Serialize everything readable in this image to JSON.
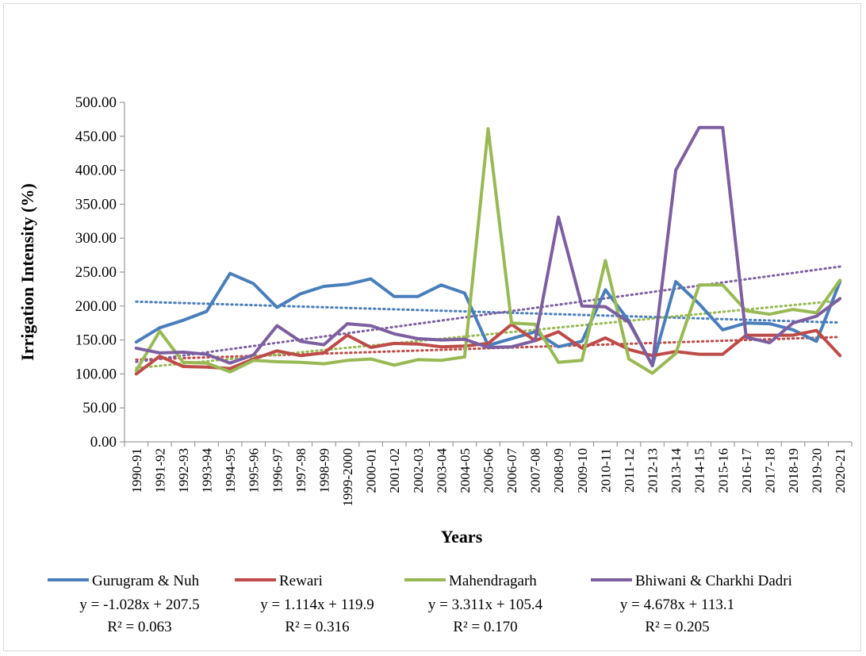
{
  "chart_data": {
    "type": "line",
    "title": "",
    "xlabel": "Years",
    "ylabel": "Irrigation Intensity (%)",
    "ylim": [
      0,
      500
    ],
    "yticks": [
      "0.00",
      "50.00",
      "100.00",
      "150.00",
      "200.00",
      "250.00",
      "300.00",
      "350.00",
      "400.00",
      "450.00",
      "500.00"
    ],
    "grid": false,
    "legend": "bottom",
    "categories": [
      "1990-91",
      "1991-92",
      "1992-93",
      "1993-94",
      "1994-95",
      "1995-96",
      "1996-97",
      "1997-98",
      "1998-99",
      "1999-2000",
      "2000-01",
      "2001-02",
      "2002-03",
      "2003-04",
      "2004-05",
      "2005-06",
      "2006-07",
      "2007-08",
      "2008-09",
      "2009-10",
      "2010-11",
      "2011-12",
      "2012-13",
      "2013-14",
      "2014-15",
      "2015-16",
      "2016-17",
      "2017-18",
      "2018-19",
      "2019-20",
      "2020-21"
    ],
    "series": [
      {
        "name": "Gurugram & Nuh",
        "color": "#4a7ebb",
        "values": [
          147,
          168,
          179,
          192,
          248,
          233,
          198,
          218,
          229,
          232,
          240,
          214,
          214,
          231,
          219,
          142,
          152,
          162,
          140,
          148,
          224,
          178,
          112,
          236,
          203,
          165,
          175,
          174,
          165,
          148,
          236
        ],
        "trendline": {
          "slope": -1.028,
          "intercept": 207.5,
          "equation": "y = -1.028x + 207.5",
          "r2": "R² = 0.063"
        }
      },
      {
        "name": "Rewari",
        "color": "#be4b48",
        "values": [
          100,
          126,
          111,
          110,
          108,
          122,
          134,
          127,
          131,
          157,
          139,
          145,
          144,
          140,
          141,
          145,
          173,
          149,
          162,
          138,
          153,
          136,
          127,
          133,
          129,
          129,
          157,
          157,
          157,
          164,
          127
        ],
        "trendline": {
          "slope": 1.114,
          "intercept": 119.9,
          "equation": "y = 1.114x + 119.9",
          "r2": "R² = 0.316"
        }
      },
      {
        "name": "Mahendragarh",
        "color": "#98b954",
        "values": [
          105,
          163,
          117,
          116,
          103,
          120,
          118,
          117,
          115,
          120,
          122,
          113,
          121,
          120,
          125,
          461,
          175,
          173,
          117,
          120,
          267,
          122,
          101,
          130,
          231,
          231,
          193,
          188,
          195,
          190,
          238
        ],
        "trendline": {
          "slope": 3.311,
          "intercept": 105.4,
          "equation": "y = 3.311x + 105.4",
          "r2": "R² = 0.170"
        }
      },
      {
        "name": "Bhiwani & Charkhi Dadri",
        "color": "#7d5fa0",
        "values": [
          138,
          131,
          132,
          129,
          116,
          128,
          171,
          148,
          143,
          174,
          171,
          159,
          152,
          150,
          151,
          139,
          140,
          149,
          331,
          200,
          199,
          176,
          113,
          400,
          463,
          463,
          154,
          146,
          175,
          185,
          211
        ],
        "trendline": {
          "slope": 4.678,
          "intercept": 113.1,
          "equation": "y = 4.678x + 113.1",
          "r2": "R² = 0.205"
        }
      }
    ]
  }
}
